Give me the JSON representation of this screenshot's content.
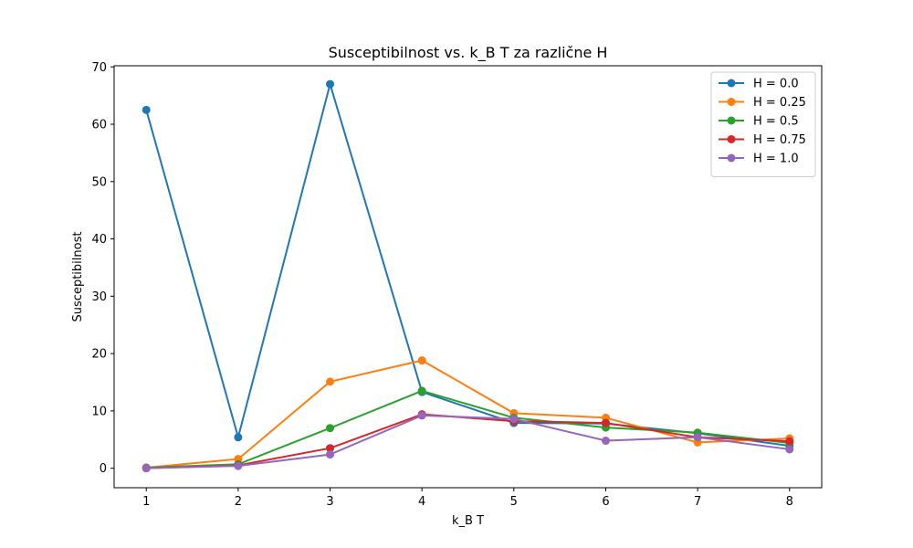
{
  "chart_data": {
    "type": "line",
    "title": "Susceptibilnost vs. k_B T za različne H",
    "xlabel": "k_B T",
    "ylabel": "Susceptibilnost",
    "x": [
      1,
      2,
      3,
      4,
      5,
      6,
      7,
      8
    ],
    "xticks": [
      1,
      2,
      3,
      4,
      5,
      6,
      7,
      8
    ],
    "yticks": [
      0,
      10,
      20,
      30,
      40,
      50,
      60,
      70
    ],
    "xlim": [
      0.65,
      8.35
    ],
    "ylim": [
      -3.4,
      70.2
    ],
    "grid": false,
    "legend_position": "top-right",
    "markers": "circle",
    "series": [
      {
        "name": "H = 0.0",
        "color": "#1f77b4",
        "values": [
          62.5,
          5.4,
          67.0,
          13.3,
          7.9,
          7.8,
          6.1,
          3.9
        ]
      },
      {
        "name": "H = 0.25",
        "color": "#ff7f0e",
        "values": [
          0.1,
          1.6,
          15.1,
          18.8,
          9.6,
          8.8,
          4.5,
          5.2
        ]
      },
      {
        "name": "H = 0.5",
        "color": "#2ca02c",
        "values": [
          0.1,
          0.7,
          7.0,
          13.5,
          8.8,
          7.1,
          6.2,
          4.4
        ]
      },
      {
        "name": "H = 0.75",
        "color": "#d62728",
        "values": [
          0.0,
          0.5,
          3.5,
          9.4,
          8.2,
          7.9,
          5.4,
          4.7
        ]
      },
      {
        "name": "H = 1.0",
        "color": "#9467bd",
        "values": [
          0.0,
          0.4,
          2.4,
          9.2,
          8.6,
          4.8,
          5.4,
          3.3
        ]
      }
    ]
  }
}
